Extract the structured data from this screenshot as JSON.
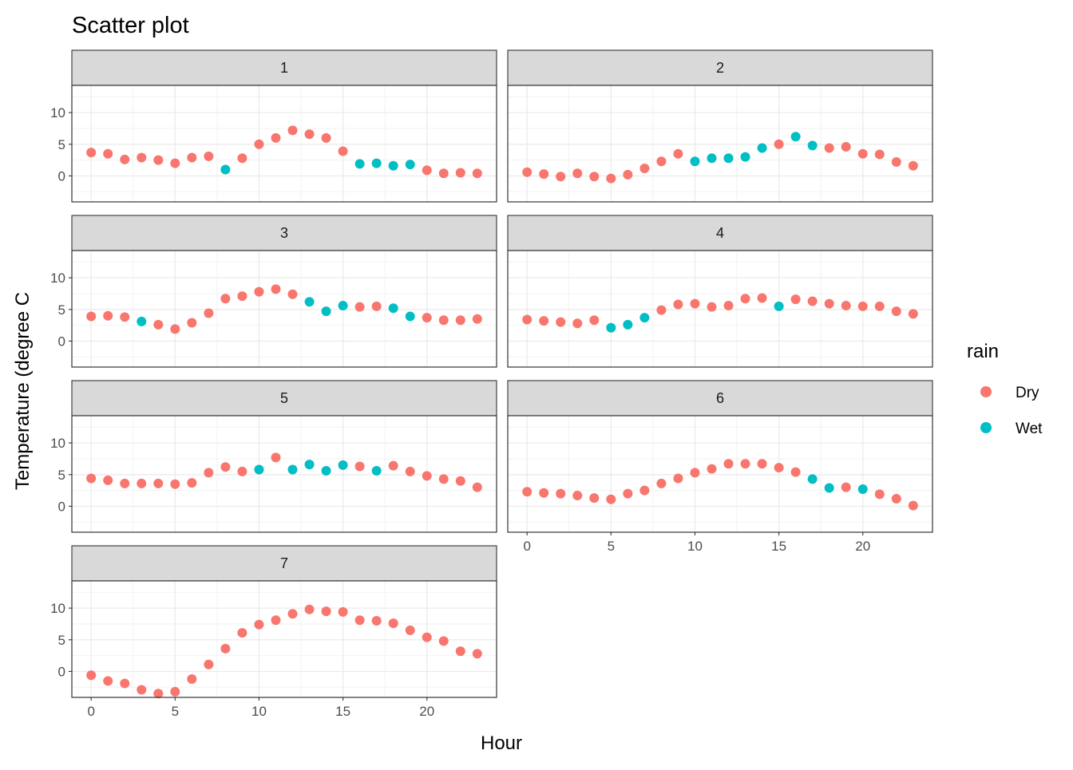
{
  "chart_data": {
    "type": "scatter",
    "title": "Scatter plot",
    "xlabel": "Hour",
    "ylabel": "Temperature (degree C",
    "xlim": [
      -1.15,
      24.15
    ],
    "ylim": [
      -4.1,
      14.3
    ],
    "x_ticks": [
      0,
      5,
      10,
      15,
      20
    ],
    "y_ticks": [
      0,
      5,
      10
    ],
    "grid": true,
    "legend": {
      "title": "rain",
      "position": "right",
      "entries": [
        {
          "label": "Dry",
          "color": "#F8766D"
        },
        {
          "label": "Wet",
          "color": "#00BFC4"
        }
      ]
    },
    "facets": [
      {
        "label": "1",
        "points": [
          [
            0,
            3.7,
            "Dry"
          ],
          [
            1,
            3.5,
            "Dry"
          ],
          [
            2,
            2.6,
            "Dry"
          ],
          [
            3,
            2.9,
            "Dry"
          ],
          [
            4,
            2.5,
            "Dry"
          ],
          [
            5,
            2.0,
            "Dry"
          ],
          [
            6,
            2.9,
            "Dry"
          ],
          [
            7,
            3.1,
            "Dry"
          ],
          [
            8,
            1.0,
            "Wet"
          ],
          [
            9,
            2.8,
            "Dry"
          ],
          [
            10,
            5.0,
            "Dry"
          ],
          [
            11,
            6.0,
            "Dry"
          ],
          [
            12,
            7.2,
            "Dry"
          ],
          [
            13,
            6.6,
            "Dry"
          ],
          [
            14,
            6.0,
            "Dry"
          ],
          [
            15,
            3.9,
            "Dry"
          ],
          [
            16,
            1.9,
            "Wet"
          ],
          [
            17,
            2.0,
            "Wet"
          ],
          [
            18,
            1.6,
            "Wet"
          ],
          [
            19,
            1.8,
            "Wet"
          ],
          [
            20,
            0.9,
            "Dry"
          ],
          [
            21,
            0.4,
            "Dry"
          ],
          [
            22,
            0.5,
            "Dry"
          ],
          [
            23,
            0.4,
            "Dry"
          ]
        ]
      },
      {
        "label": "2",
        "points": [
          [
            0,
            0.6,
            "Dry"
          ],
          [
            1,
            0.3,
            "Dry"
          ],
          [
            2,
            -0.1,
            "Dry"
          ],
          [
            3,
            0.4,
            "Dry"
          ],
          [
            4,
            -0.1,
            "Dry"
          ],
          [
            5,
            -0.4,
            "Dry"
          ],
          [
            6,
            0.2,
            "Dry"
          ],
          [
            7,
            1.2,
            "Dry"
          ],
          [
            8,
            2.3,
            "Dry"
          ],
          [
            9,
            3.5,
            "Dry"
          ],
          [
            10,
            2.3,
            "Wet"
          ],
          [
            11,
            2.8,
            "Wet"
          ],
          [
            12,
            2.8,
            "Wet"
          ],
          [
            13,
            3.0,
            "Wet"
          ],
          [
            14,
            4.4,
            "Wet"
          ],
          [
            15,
            5.0,
            "Dry"
          ],
          [
            16,
            6.2,
            "Wet"
          ],
          [
            17,
            4.8,
            "Wet"
          ],
          [
            18,
            4.4,
            "Dry"
          ],
          [
            19,
            4.6,
            "Dry"
          ],
          [
            20,
            3.5,
            "Dry"
          ],
          [
            21,
            3.4,
            "Dry"
          ],
          [
            22,
            2.2,
            "Dry"
          ],
          [
            23,
            1.6,
            "Dry"
          ]
        ]
      },
      {
        "label": "3",
        "points": [
          [
            0,
            3.9,
            "Dry"
          ],
          [
            1,
            4.0,
            "Dry"
          ],
          [
            2,
            3.8,
            "Dry"
          ],
          [
            3,
            3.1,
            "Wet"
          ],
          [
            4,
            2.6,
            "Dry"
          ],
          [
            5,
            1.9,
            "Dry"
          ],
          [
            6,
            2.9,
            "Dry"
          ],
          [
            7,
            4.4,
            "Dry"
          ],
          [
            8,
            6.7,
            "Dry"
          ],
          [
            9,
            7.1,
            "Dry"
          ],
          [
            10,
            7.8,
            "Dry"
          ],
          [
            11,
            8.2,
            "Dry"
          ],
          [
            12,
            7.4,
            "Dry"
          ],
          [
            13,
            6.2,
            "Wet"
          ],
          [
            14,
            4.7,
            "Wet"
          ],
          [
            15,
            5.6,
            "Wet"
          ],
          [
            16,
            5.4,
            "Dry"
          ],
          [
            17,
            5.5,
            "Dry"
          ],
          [
            18,
            5.2,
            "Wet"
          ],
          [
            19,
            3.9,
            "Wet"
          ],
          [
            20,
            3.7,
            "Dry"
          ],
          [
            21,
            3.3,
            "Dry"
          ],
          [
            22,
            3.3,
            "Dry"
          ],
          [
            23,
            3.5,
            "Dry"
          ]
        ]
      },
      {
        "label": "4",
        "points": [
          [
            0,
            3.4,
            "Dry"
          ],
          [
            1,
            3.2,
            "Dry"
          ],
          [
            2,
            3.0,
            "Dry"
          ],
          [
            3,
            2.8,
            "Dry"
          ],
          [
            4,
            3.3,
            "Dry"
          ],
          [
            5,
            2.1,
            "Wet"
          ],
          [
            6,
            2.6,
            "Wet"
          ],
          [
            7,
            3.7,
            "Wet"
          ],
          [
            8,
            4.9,
            "Dry"
          ],
          [
            9,
            5.8,
            "Dry"
          ],
          [
            10,
            5.9,
            "Dry"
          ],
          [
            11,
            5.4,
            "Dry"
          ],
          [
            12,
            5.6,
            "Dry"
          ],
          [
            13,
            6.7,
            "Dry"
          ],
          [
            14,
            6.8,
            "Dry"
          ],
          [
            15,
            5.5,
            "Wet"
          ],
          [
            16,
            6.6,
            "Dry"
          ],
          [
            17,
            6.3,
            "Dry"
          ],
          [
            18,
            5.9,
            "Dry"
          ],
          [
            19,
            5.6,
            "Dry"
          ],
          [
            20,
            5.5,
            "Dry"
          ],
          [
            21,
            5.5,
            "Dry"
          ],
          [
            22,
            4.7,
            "Dry"
          ],
          [
            23,
            4.3,
            "Dry"
          ]
        ]
      },
      {
        "label": "5",
        "points": [
          [
            0,
            4.4,
            "Dry"
          ],
          [
            1,
            4.1,
            "Dry"
          ],
          [
            2,
            3.6,
            "Dry"
          ],
          [
            3,
            3.6,
            "Dry"
          ],
          [
            4,
            3.6,
            "Dry"
          ],
          [
            5,
            3.5,
            "Dry"
          ],
          [
            6,
            3.7,
            "Dry"
          ],
          [
            7,
            5.3,
            "Dry"
          ],
          [
            8,
            6.2,
            "Dry"
          ],
          [
            9,
            5.5,
            "Dry"
          ],
          [
            10,
            5.8,
            "Wet"
          ],
          [
            11,
            7.7,
            "Dry"
          ],
          [
            12,
            5.8,
            "Wet"
          ],
          [
            13,
            6.6,
            "Wet"
          ],
          [
            14,
            5.6,
            "Wet"
          ],
          [
            15,
            6.5,
            "Wet"
          ],
          [
            16,
            6.3,
            "Dry"
          ],
          [
            17,
            5.6,
            "Wet"
          ],
          [
            18,
            6.4,
            "Dry"
          ],
          [
            19,
            5.5,
            "Dry"
          ],
          [
            20,
            4.8,
            "Dry"
          ],
          [
            21,
            4.3,
            "Dry"
          ],
          [
            22,
            4.0,
            "Dry"
          ],
          [
            23,
            3.0,
            "Dry"
          ]
        ]
      },
      {
        "label": "6",
        "points": [
          [
            0,
            2.3,
            "Dry"
          ],
          [
            1,
            2.1,
            "Dry"
          ],
          [
            2,
            2.0,
            "Dry"
          ],
          [
            3,
            1.7,
            "Dry"
          ],
          [
            4,
            1.3,
            "Dry"
          ],
          [
            5,
            1.1,
            "Dry"
          ],
          [
            6,
            2.0,
            "Dry"
          ],
          [
            7,
            2.5,
            "Dry"
          ],
          [
            8,
            3.6,
            "Dry"
          ],
          [
            9,
            4.4,
            "Dry"
          ],
          [
            10,
            5.3,
            "Dry"
          ],
          [
            11,
            5.9,
            "Dry"
          ],
          [
            12,
            6.7,
            "Dry"
          ],
          [
            13,
            6.7,
            "Dry"
          ],
          [
            14,
            6.7,
            "Dry"
          ],
          [
            15,
            6.1,
            "Dry"
          ],
          [
            16,
            5.4,
            "Dry"
          ],
          [
            17,
            4.3,
            "Wet"
          ],
          [
            18,
            2.9,
            "Wet"
          ],
          [
            19,
            3.0,
            "Dry"
          ],
          [
            20,
            2.7,
            "Wet"
          ],
          [
            21,
            1.9,
            "Dry"
          ],
          [
            22,
            1.2,
            "Dry"
          ],
          [
            23,
            0.1,
            "Dry"
          ]
        ]
      },
      {
        "label": "7",
        "points": [
          [
            0,
            -0.6,
            "Dry"
          ],
          [
            1,
            -1.5,
            "Dry"
          ],
          [
            2,
            -1.9,
            "Dry"
          ],
          [
            3,
            -2.9,
            "Dry"
          ],
          [
            4,
            -3.5,
            "Dry"
          ],
          [
            5,
            -3.2,
            "Dry"
          ],
          [
            6,
            -1.2,
            "Dry"
          ],
          [
            7,
            1.1,
            "Dry"
          ],
          [
            8,
            3.6,
            "Dry"
          ],
          [
            9,
            6.1,
            "Dry"
          ],
          [
            10,
            7.4,
            "Dry"
          ],
          [
            11,
            8.1,
            "Dry"
          ],
          [
            12,
            9.1,
            "Dry"
          ],
          [
            13,
            9.8,
            "Dry"
          ],
          [
            14,
            9.5,
            "Dry"
          ],
          [
            15,
            9.4,
            "Dry"
          ],
          [
            16,
            8.1,
            "Dry"
          ],
          [
            17,
            8.0,
            "Dry"
          ],
          [
            18,
            7.6,
            "Dry"
          ],
          [
            19,
            6.5,
            "Dry"
          ],
          [
            20,
            5.4,
            "Dry"
          ],
          [
            21,
            4.8,
            "Dry"
          ],
          [
            22,
            3.2,
            "Dry"
          ],
          [
            23,
            2.8,
            "Dry"
          ]
        ]
      }
    ]
  }
}
